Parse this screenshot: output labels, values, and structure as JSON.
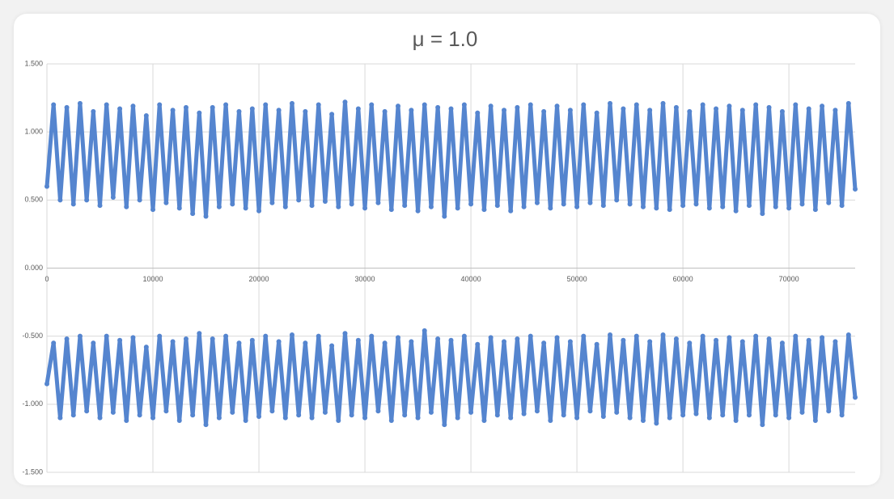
{
  "chart_data": {
    "type": "scatter",
    "title": "μ = 1.0",
    "x": [
      0,
      625,
      1250,
      1875,
      2500,
      3125,
      3750,
      4375,
      5000,
      5625,
      6250,
      6875,
      7500,
      8125,
      8750,
      9375,
      10000,
      10625,
      11250,
      11875,
      12500,
      13125,
      13750,
      14375,
      15000,
      15625,
      16250,
      16875,
      17500,
      18125,
      18750,
      19375,
      20000,
      20625,
      21250,
      21875,
      22500,
      23125,
      23750,
      24375,
      25000,
      25625,
      26250,
      26875,
      27500,
      28125,
      28750,
      29375,
      30000,
      30625,
      31250,
      31875,
      32500,
      33125,
      33750,
      34375,
      35000,
      35625,
      36250,
      36875,
      37500,
      38125,
      38750,
      39375,
      40000,
      40625,
      41250,
      41875,
      42500,
      43125,
      43750,
      44375,
      45000,
      45625,
      46250,
      46875,
      47500,
      48125,
      48750,
      49375,
      50000,
      50625,
      51250,
      51875,
      52500,
      53125,
      53750,
      54375,
      55000,
      55625,
      56250,
      56875,
      57500,
      58125,
      58750,
      59375,
      60000,
      60625,
      61250,
      61875,
      62500,
      63125,
      63750,
      64375,
      65000,
      65625,
      66250,
      66875,
      67500,
      68125,
      68750,
      69375,
      70000,
      70625,
      71250,
      71875,
      72500,
      73125,
      73750,
      74375,
      75000,
      75625,
      76250
    ],
    "series": [
      {
        "color": "#5585cf",
        "values": [
          0.6,
          1.2,
          0.5,
          1.18,
          0.47,
          1.21,
          0.5,
          1.15,
          0.46,
          1.2,
          0.52,
          1.17,
          0.45,
          1.19,
          0.5,
          1.12,
          0.43,
          1.2,
          0.48,
          1.16,
          0.44,
          1.18,
          0.4,
          1.14,
          0.38,
          1.18,
          0.45,
          1.2,
          0.47,
          1.15,
          0.44,
          1.17,
          0.42,
          1.2,
          0.48,
          1.16,
          0.45,
          1.21,
          0.5,
          1.15,
          0.46,
          1.2,
          0.49,
          1.13,
          0.45,
          1.22,
          0.47,
          1.17,
          0.44,
          1.2,
          0.48,
          1.15,
          0.43,
          1.19,
          0.46,
          1.16,
          0.42,
          1.2,
          0.45,
          1.18,
          0.38,
          1.17,
          0.44,
          1.2,
          0.47,
          1.14,
          0.43,
          1.19,
          0.46,
          1.16,
          0.42,
          1.18,
          0.45,
          1.2,
          0.48,
          1.15,
          0.44,
          1.19,
          0.47,
          1.16,
          0.45,
          1.2,
          0.48,
          1.14,
          0.46,
          1.21,
          0.5,
          1.17,
          0.47,
          1.2,
          0.45,
          1.16,
          0.44,
          1.21,
          0.43,
          1.18,
          0.46,
          1.15,
          0.47,
          1.2,
          0.44,
          1.17,
          0.45,
          1.19,
          0.42,
          1.16,
          0.46,
          1.2,
          0.4,
          1.18,
          0.45,
          1.15,
          0.44,
          1.2,
          0.47,
          1.17,
          0.43,
          1.19,
          0.48,
          1.16,
          0.46,
          1.21,
          0.58
        ]
      },
      {
        "color": "#5585cf",
        "values": [
          -0.85,
          -0.55,
          -1.1,
          -0.52,
          -1.08,
          -0.5,
          -1.05,
          -0.55,
          -1.1,
          -0.5,
          -1.06,
          -0.53,
          -1.12,
          -0.51,
          -1.08,
          -0.58,
          -1.1,
          -0.5,
          -1.05,
          -0.54,
          -1.12,
          -0.52,
          -1.08,
          -0.48,
          -1.15,
          -0.52,
          -1.1,
          -0.5,
          -1.06,
          -0.55,
          -1.12,
          -0.53,
          -1.09,
          -0.5,
          -1.05,
          -0.54,
          -1.1,
          -0.49,
          -1.08,
          -0.55,
          -1.1,
          -0.5,
          -1.06,
          -0.57,
          -1.12,
          -0.48,
          -1.08,
          -0.53,
          -1.1,
          -0.5,
          -1.05,
          -0.55,
          -1.12,
          -0.51,
          -1.08,
          -0.54,
          -1.1,
          -0.46,
          -1.06,
          -0.52,
          -1.15,
          -0.53,
          -1.1,
          -0.5,
          -1.06,
          -0.56,
          -1.12,
          -0.51,
          -1.08,
          -0.54,
          -1.1,
          -0.52,
          -1.07,
          -0.5,
          -1.05,
          -0.55,
          -1.12,
          -0.51,
          -1.08,
          -0.54,
          -1.1,
          -0.5,
          -1.05,
          -0.56,
          -1.09,
          -0.49,
          -1.06,
          -0.53,
          -1.1,
          -0.5,
          -1.12,
          -0.54,
          -1.14,
          -0.49,
          -1.1,
          -0.52,
          -1.08,
          -0.55,
          -1.07,
          -0.5,
          -1.1,
          -0.53,
          -1.08,
          -0.51,
          -1.12,
          -0.54,
          -1.08,
          -0.5,
          -1.15,
          -0.52,
          -1.08,
          -0.55,
          -1.1,
          -0.5,
          -1.06,
          -0.53,
          -1.12,
          -0.51,
          -1.05,
          -0.54,
          -1.08,
          -0.49,
          -0.95
        ]
      }
    ],
    "xlim": [
      0,
      76250
    ],
    "xticks": [
      0,
      10000,
      20000,
      30000,
      40000,
      50000,
      60000,
      70000
    ],
    "ylim": [
      -1.5,
      1.5
    ],
    "yticks": [
      {
        "value": -1.5,
        "label": "-1.500"
      },
      {
        "value": -1.0,
        "label": "-1.000"
      },
      {
        "value": -0.5,
        "label": "-0.500"
      },
      {
        "value": 0,
        "label": "0.000"
      },
      {
        "value": 0.5,
        "label": "0.500"
      },
      {
        "value": 1.0,
        "label": "1.000"
      },
      {
        "value": 1.5,
        "label": "1.500"
      }
    ],
    "grid": true
  }
}
